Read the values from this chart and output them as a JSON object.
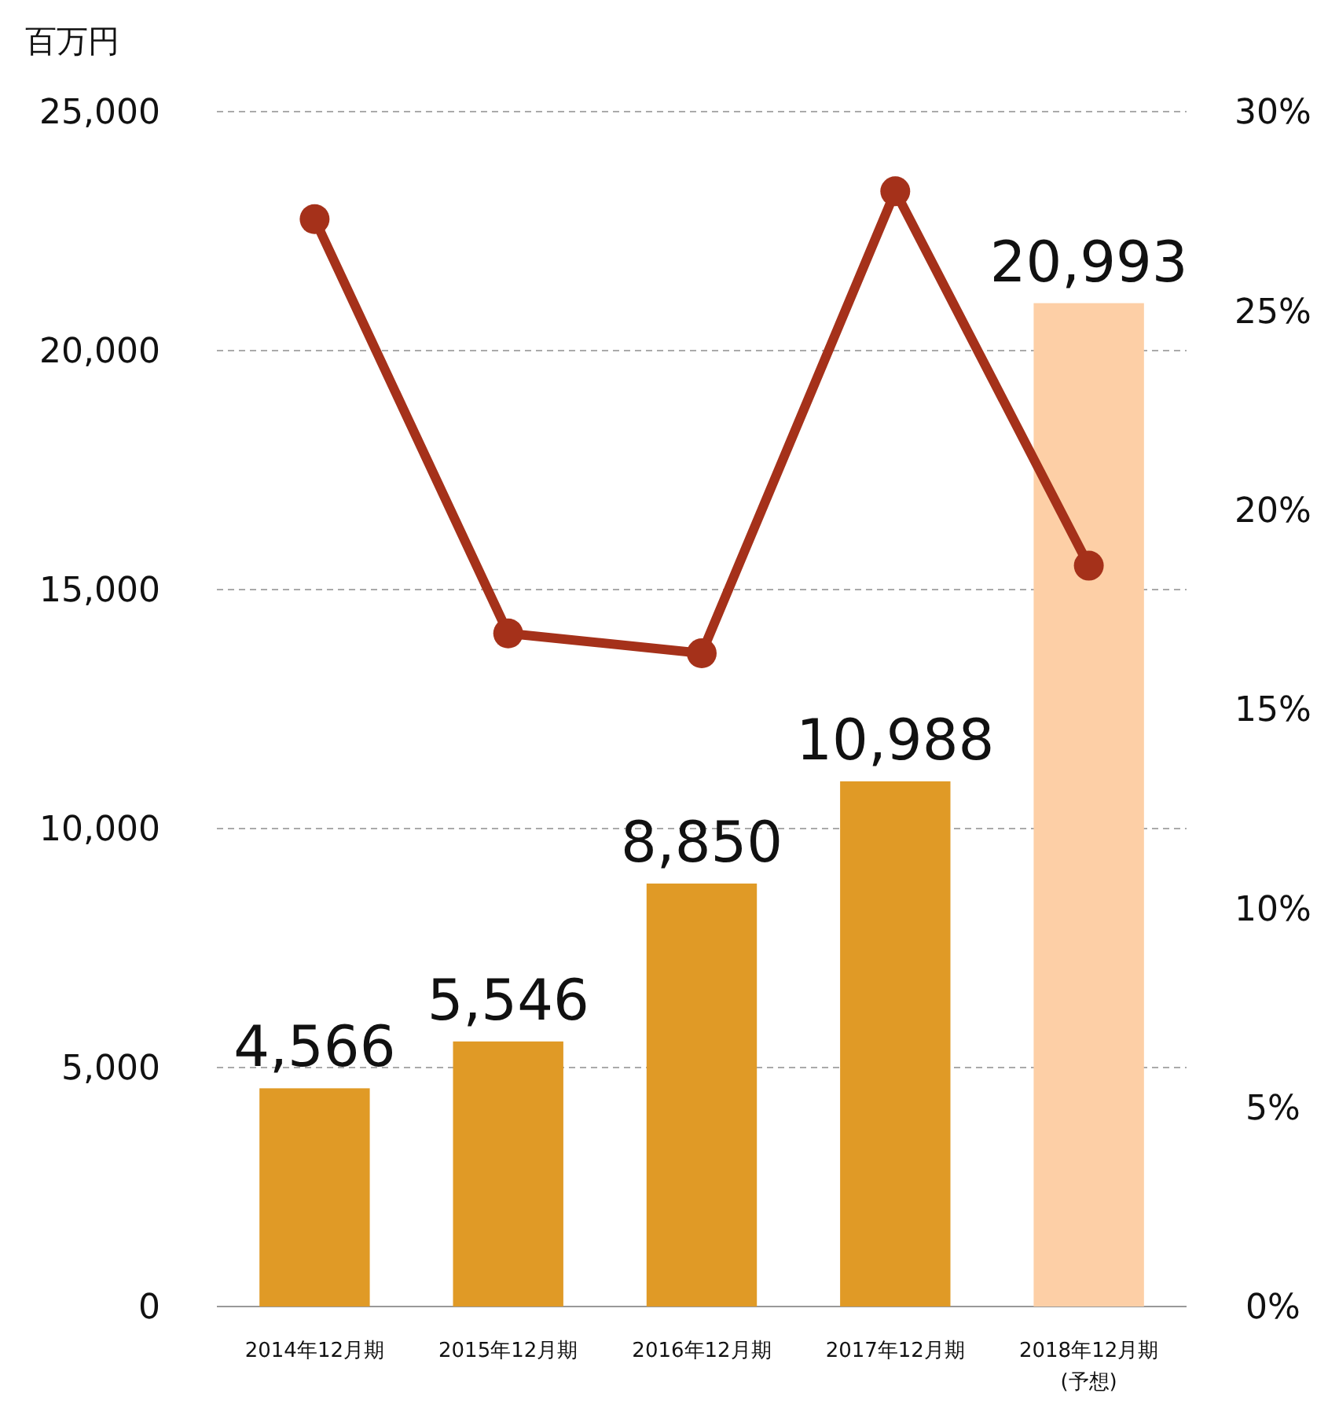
{
  "chart_data": {
    "type": "bar",
    "ylabel": "百万円",
    "categories": [
      "2014年12月期",
      "2015年12月期",
      "2016年12月期",
      "2017年12月期",
      "2018年12月期\n(予想)"
    ],
    "series": [
      {
        "value_labels": [
          "4,566",
          "5,546",
          "8,850",
          "10,988",
          "20,993"
        ],
        "colors": [
          "#e09a26",
          "#e09a26",
          "#e09a26",
          "#e09a26",
          "#fdcfa6"
        ],
        "values": [
          4566,
          5546,
          8850,
          10988,
          20993
        ]
      },
      {
        "type": "line",
        "axis": "y2",
        "color": "#a5311a",
        "values": [
          27.3,
          16.9,
          16.4,
          28.0,
          18.6
        ],
        "marker": "circle",
        "line_style": "solid"
      }
    ],
    "ylim": [
      0,
      25000
    ],
    "yticks": [
      {
        "value": 0,
        "label": "0"
      },
      {
        "value": 5000,
        "label": "5,000"
      },
      {
        "value": 10000,
        "label": "10,000"
      },
      {
        "value": 15000,
        "label": "15,000"
      },
      {
        "value": 20000,
        "label": "20,000"
      },
      {
        "value": 25000,
        "label": "25,000"
      }
    ],
    "y2lim": [
      0,
      30
    ],
    "y2ticks": [
      {
        "value": 0,
        "label": "0%"
      },
      {
        "value": 5,
        "label": "5%"
      },
      {
        "value": 10,
        "label": "10%"
      },
      {
        "value": 15,
        "label": "15%"
      },
      {
        "value": 20,
        "label": "20%"
      },
      {
        "value": 25,
        "label": "25%"
      },
      {
        "value": 30,
        "label": "30%"
      }
    ],
    "grid": "y"
  }
}
